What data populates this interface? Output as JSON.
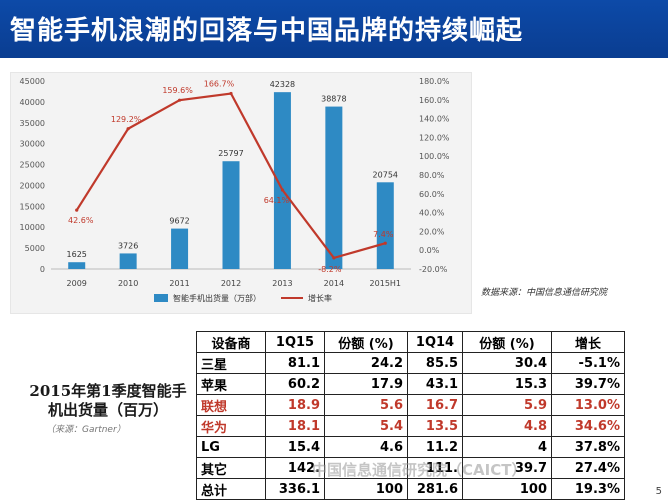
{
  "slide_title": "智能手机浪潮的回落与中国品牌的持续崛起",
  "chart_data": {
    "type": "bar",
    "categories": [
      "2009",
      "2010",
      "2011",
      "2012",
      "2013",
      "2014",
      "2015H1"
    ],
    "series": [
      {
        "name": "智能手机出货量（万部）",
        "type": "bar",
        "values": [
          1625,
          3726,
          9672,
          25797,
          42328,
          38878,
          20754
        ]
      },
      {
        "name": "增长率",
        "type": "line",
        "values": [
          42.6,
          129.2,
          159.6,
          166.7,
          64.1,
          -8.2,
          7.4
        ]
      }
    ],
    "value_labels": [
      "1625",
      "3726",
      "9672",
      "25797",
      "42328",
      "38878",
      "20754"
    ],
    "rate_labels": [
      "42.6%",
      "129.2%",
      "159.6%",
      "166.7%",
      "64.1%",
      "-8.2%",
      "7.4%"
    ],
    "ylim_left": [
      0,
      45000
    ],
    "ylim_right": [
      -20,
      180
    ],
    "left_ticks": [
      "0",
      "5000",
      "10000",
      "15000",
      "20000",
      "25000",
      "30000",
      "35000",
      "40000",
      "45000"
    ],
    "right_ticks": [
      "-20.0%",
      "0.0%",
      "20.0%",
      "40.0%",
      "60.0%",
      "80.0%",
      "100.0%",
      "120.0%",
      "140.0%",
      "160.0%",
      "180.0%"
    ],
    "legend_position": "bottom",
    "colors": {
      "bar": "#2e8ac4",
      "line": "#c0392b"
    }
  },
  "source_text": "数据来源：中国信息通信研究院",
  "caption": {
    "title": "2015年第1季度智能手机出货量（百万）",
    "source": "（来源：Gartner）"
  },
  "table": {
    "headers": [
      "设备商",
      "1Q15",
      "份额 (%)",
      "1Q14",
      "份额 (%)",
      "增长"
    ],
    "rows": [
      {
        "cells": [
          "三星",
          "81.1",
          "24.2",
          "85.5",
          "30.4",
          "-5.1%"
        ],
        "highlight": false
      },
      {
        "cells": [
          "苹果",
          "60.2",
          "17.9",
          "43.1",
          "15.3",
          "39.7%"
        ],
        "highlight": false
      },
      {
        "cells": [
          "联想",
          "18.9",
          "5.6",
          "16.7",
          "5.9",
          "13.0%"
        ],
        "highlight": true
      },
      {
        "cells": [
          "华为",
          "18.1",
          "5.4",
          "13.5",
          "4.8",
          "34.6%"
        ],
        "highlight": true
      },
      {
        "cells": [
          "LG",
          "15.4",
          "4.6",
          "11.2",
          "4",
          "37.8%"
        ],
        "highlight": false
      },
      {
        "cells": [
          "其它",
          "142.",
          "",
          "111.",
          "39.7",
          "27.4%"
        ],
        "highlight": false
      },
      {
        "cells": [
          "总计",
          "336.1",
          "100",
          "281.6",
          "100",
          "19.3%"
        ],
        "highlight": false
      }
    ]
  },
  "watermark": "中国信息通信研究院（CAICT）",
  "page_number": "5"
}
